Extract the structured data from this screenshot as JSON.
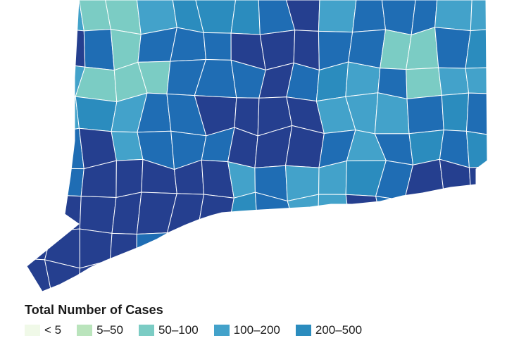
{
  "colors": {
    "c1": "#f0f9e8",
    "c2": "#bae4bc",
    "c3": "#7bccc4",
    "c4": "#43a2ca",
    "c5": "#2b8cbe",
    "c6": "#1f6db4",
    "c7": "#253f8f",
    "border": "#ffffff"
  },
  "legend": {
    "title": "Total Number of Cases",
    "items": [
      {
        "label": "< 5",
        "color": "#f0f9e8"
      },
      {
        "label": "5–50",
        "color": "#bae4bc"
      },
      {
        "label": "50–100",
        "color": "#7bccc4"
      },
      {
        "label": "100–200",
        "color": "#43a2ca"
      },
      {
        "label": "200–500",
        "color": "#2b8cbe"
      }
    ]
  }
}
